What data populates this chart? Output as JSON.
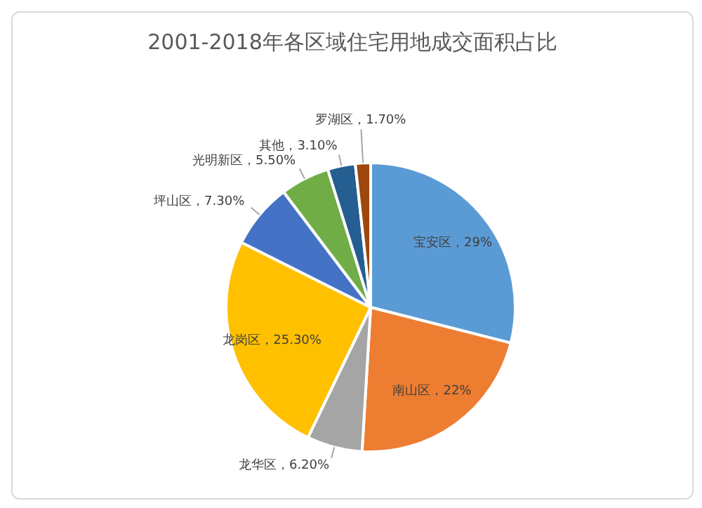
{
  "chart_data": {
    "type": "pie",
    "title": "2001-2018年各区域住宅用地成交面积占比",
    "categories": [
      "宝安区",
      "南山区",
      "龙华区",
      "龙岗区",
      "坪山区",
      "光明新区",
      "其他",
      "罗湖区"
    ],
    "values": [
      29,
      22,
      6.2,
      25.3,
      7.3,
      5.5,
      3.1,
      1.7
    ],
    "value_labels": [
      "29%",
      "22%",
      "6.20%",
      "25.30%",
      "7.30%",
      "5.50%",
      "3.10%",
      "1.70%"
    ],
    "colors": [
      "#5b9bd5",
      "#ed7d31",
      "#a5a5a5",
      "#ffc000",
      "#4472c4",
      "#70ad47",
      "#255e91",
      "#9e480e"
    ],
    "legend": false
  }
}
